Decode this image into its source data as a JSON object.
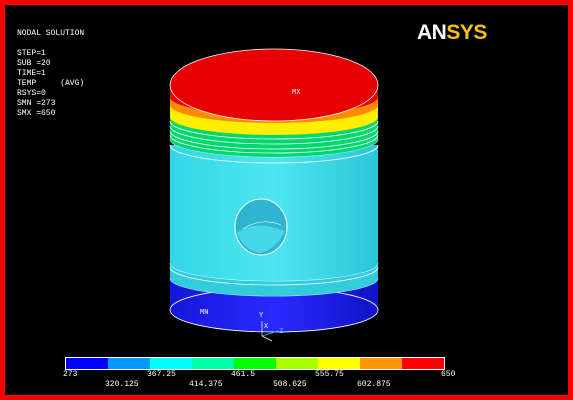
{
  "plot": {
    "info_lines": [
      "NODAL SOLUTION",
      "",
      "STEP=1",
      "SUB =20",
      "TIME=1",
      "TEMP     (AVG)",
      "RSYS=0",
      "SMN =273",
      "SMX =650"
    ],
    "logo_an": "AN",
    "logo_sys": "SYS",
    "max_label": "MX",
    "min_label": "MN",
    "axis_y": "Y",
    "axis_x": "X",
    "axis_z": "Z"
  },
  "colorbar": {
    "colors": [
      "#0000ff",
      "#0099ff",
      "#00ffff",
      "#00ffaa",
      "#00ff00",
      "#aaff00",
      "#ffff00",
      "#ff9900",
      "#ff0000"
    ],
    "lower_labels": [
      "273",
      "367.25",
      "461.5",
      "555.75",
      "650"
    ],
    "upper_labels": [
      "320.125",
      "414.375",
      "508.625",
      "602.875"
    ]
  }
}
